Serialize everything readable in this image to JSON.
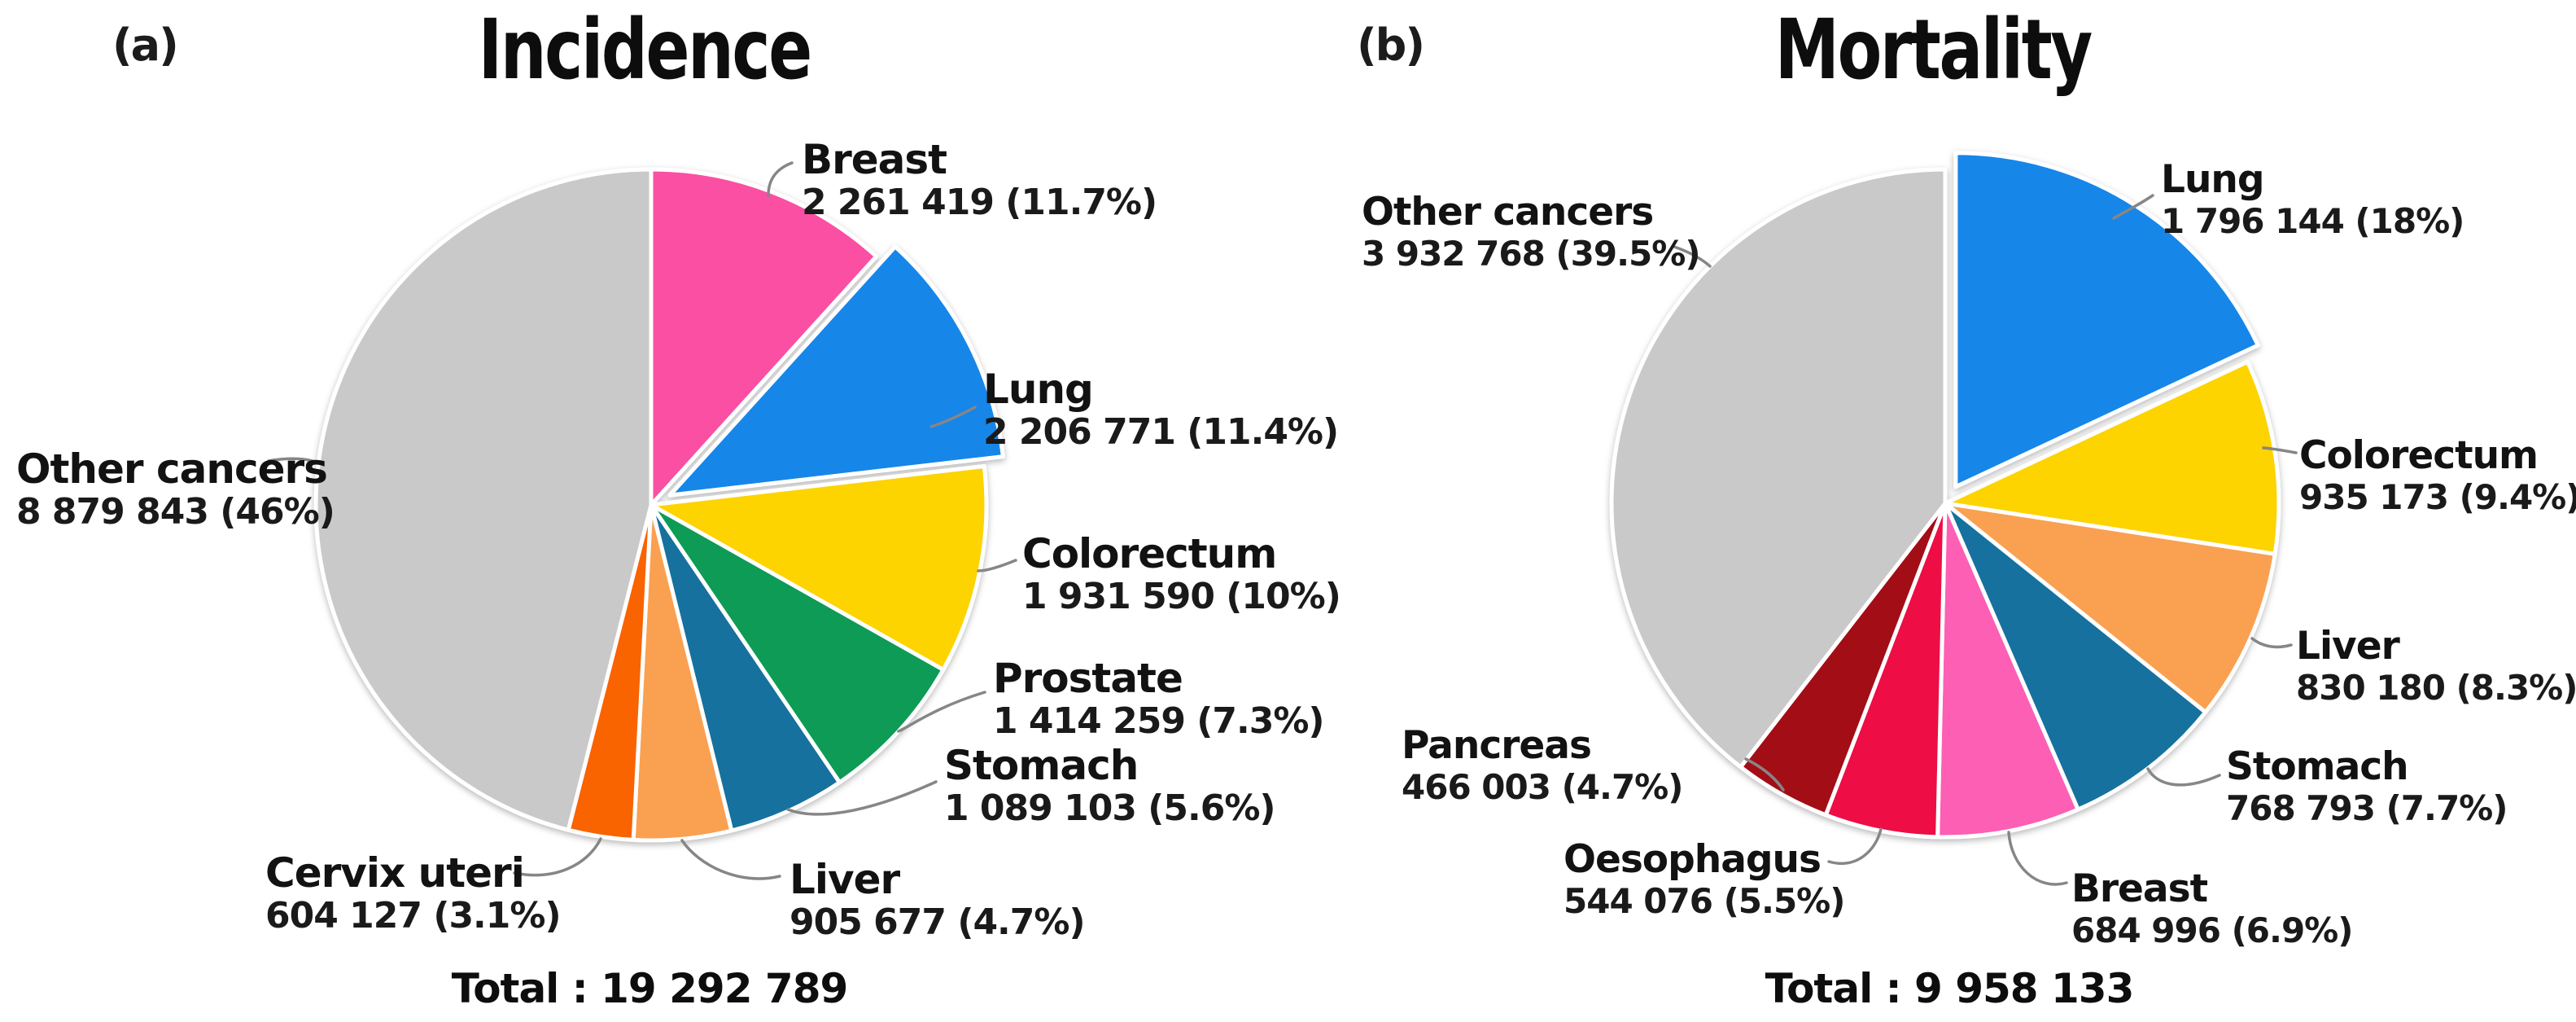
{
  "panel_letters": [
    "(a)",
    "(b)"
  ],
  "chart_data": [
    {
      "type": "pie",
      "title": "Incidence",
      "total": 19292789,
      "total_text": "Total : 19 292 789",
      "start_angle_deg": -90,
      "direction": "clockwise",
      "legend_position": "outside-labels",
      "slices": [
        {
          "label": "Breast",
          "value": 2261419,
          "pct": 11.7,
          "value_text": "2 261 419 (11.7%)",
          "color": "#fa4fa2",
          "exploded": false
        },
        {
          "label": "Lung",
          "value": 2206771,
          "pct": 11.4,
          "value_text": "2 206 771 (11.4%)",
          "color": "#1886e9",
          "exploded": true
        },
        {
          "label": "Colorectum",
          "value": 1931590,
          "pct": 10.0,
          "value_text": "1 931 590 (10%)",
          "color": "#fdd306",
          "exploded": false
        },
        {
          "label": "Prostate",
          "value": 1414259,
          "pct": 7.3,
          "value_text": "1 414 259 (7.3%)",
          "color": "#0d9b56",
          "exploded": false
        },
        {
          "label": "Stomach",
          "value": 1089103,
          "pct": 5.6,
          "value_text": "1 089 103 (5.6%)",
          "color": "#19719e",
          "exploded": false
        },
        {
          "label": "Liver",
          "value": 905677,
          "pct": 4.7,
          "value_text": "905 677 (4.7%)",
          "color": "#faa051",
          "exploded": false
        },
        {
          "label": "Cervix uteri",
          "value": 604127,
          "pct": 3.1,
          "value_text": "604 127 (3.1%)",
          "color": "#f96302",
          "exploded": false
        },
        {
          "label": "Other cancers",
          "value": 8879843,
          "pct": 46.0,
          "value_text": "8 879 843 (46%)",
          "color": "#c9c9c9",
          "exploded": false
        }
      ]
    },
    {
      "type": "pie",
      "title": "Mortality",
      "total": 9958133,
      "total_text": "Total : 9 958 133",
      "start_angle_deg": -90,
      "direction": "clockwise",
      "legend_position": "outside-labels",
      "slices": [
        {
          "label": "Lung",
          "value": 1796144,
          "pct": 18.0,
          "value_text": "1 796 144 (18%)",
          "color": "#1886e9",
          "exploded": true
        },
        {
          "label": "Colorectum",
          "value": 935173,
          "pct": 9.4,
          "value_text": "935 173 (9.4%)",
          "color": "#fdd306",
          "exploded": false
        },
        {
          "label": "Liver",
          "value": 830180,
          "pct": 8.3,
          "value_text": "830 180 (8.3%)",
          "color": "#faa051",
          "exploded": false
        },
        {
          "label": "Stomach",
          "value": 768793,
          "pct": 7.7,
          "value_text": "768 793 (7.7%)",
          "color": "#19719e",
          "exploded": false
        },
        {
          "label": "Breast",
          "value": 684996,
          "pct": 6.9,
          "value_text": "684 996 (6.9%)",
          "color": "#fc5fb3",
          "exploded": false
        },
        {
          "label": "Oesophagus",
          "value": 544076,
          "pct": 5.5,
          "value_text": "544 076 (5.5%)",
          "color": "#ee0d45",
          "exploded": false
        },
        {
          "label": "Pancreas",
          "value": 466003,
          "pct": 4.7,
          "value_text": "466 003 (4.7%)",
          "color": "#a30b14",
          "exploded": false
        },
        {
          "label": "Other cancers",
          "value": 3932768,
          "pct": 39.5,
          "value_text": "3 932 768 (39.5%)",
          "color": "#c9c9c9",
          "exploded": false
        }
      ]
    }
  ]
}
